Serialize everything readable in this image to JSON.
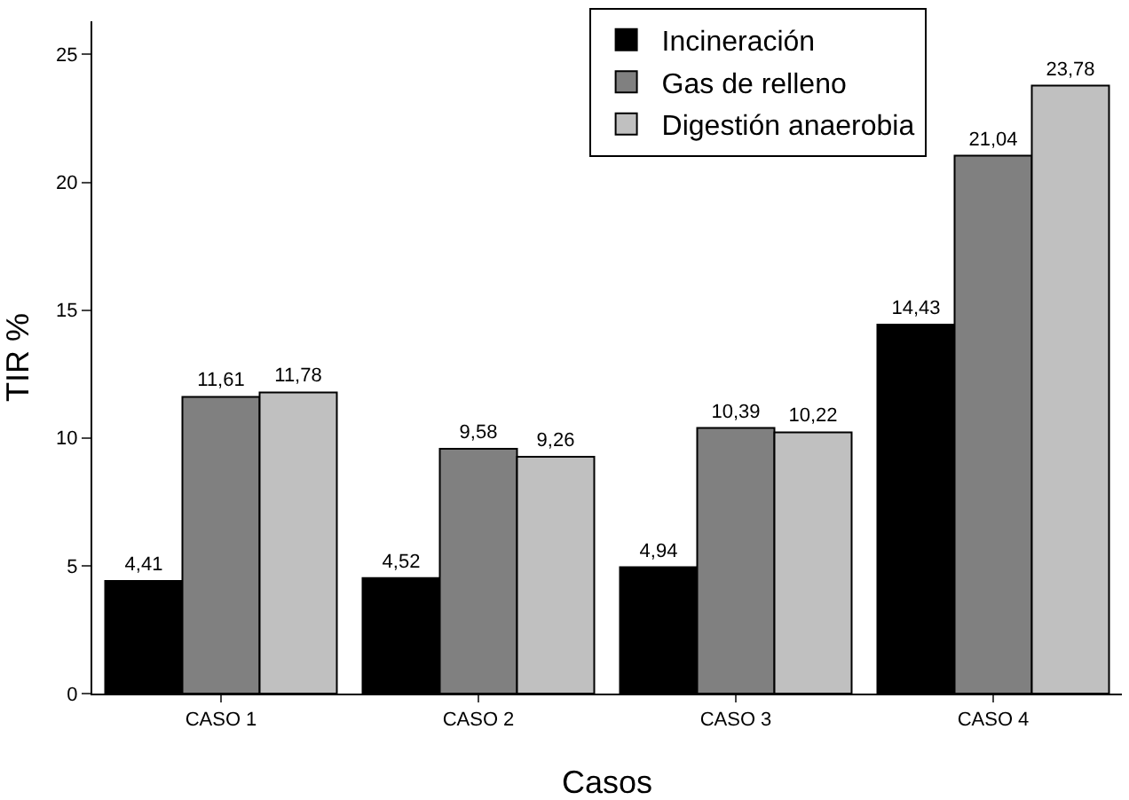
{
  "chart_data": {
    "type": "bar",
    "xlabel": "Casos",
    "ylabel": "TIR %",
    "categories": [
      "CASO 1",
      "CASO 2",
      "CASO 3",
      "CASO 4"
    ],
    "series": [
      {
        "name": "Incineración",
        "color": "#000000",
        "values": [
          4.41,
          4.52,
          4.94,
          14.43
        ],
        "value_labels": [
          "4,41",
          "4,52",
          "4,94",
          "14,43"
        ]
      },
      {
        "name": "Gas de relleno",
        "color": "#808080",
        "values": [
          11.61,
          9.58,
          10.39,
          21.04
        ],
        "value_labels": [
          "11,61",
          "9,58",
          "10,39",
          "21,04"
        ]
      },
      {
        "name": "Digestión anaerobia",
        "color": "#c0c0c0",
        "values": [
          11.78,
          9.26,
          10.22,
          23.78
        ],
        "value_labels": [
          "11,78",
          "9,26",
          "10,22",
          "23,78"
        ]
      }
    ],
    "ylim": [
      0,
      26.3
    ],
    "yticks": [
      0,
      5,
      10,
      15,
      20,
      25
    ],
    "grid": false,
    "legend": "top right"
  }
}
